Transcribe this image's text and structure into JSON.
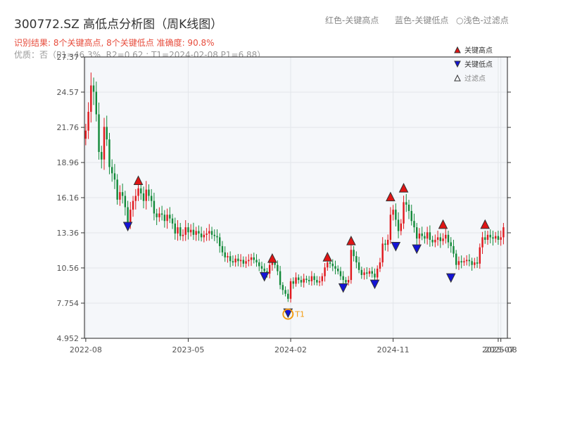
{
  "header": {
    "title": "300772.SZ 高低点分析图（周K线图）",
    "legend_top": [
      "红色-关键高点",
      "蓝色-关键低点",
      "○浅色-过滤点"
    ],
    "result_line": "识别结果: 8个关键高点, 8个关键低点   准确度: 90.8%",
    "quality_line": "优质：否（P1=46.3%, R2=0.62 ; T1=2024-02-08 P1=6.88）"
  },
  "colors": {
    "up": "#e0191e",
    "down": "#138a3a",
    "high_marker": "#e01414",
    "low_marker": "#1414d6",
    "t1": "#f39c12",
    "plot_bg": "#f5f7fa",
    "grid": "#e3e6ea"
  },
  "chart_data": {
    "type": "candlestick",
    "y_ticks": [
      "27.37",
      "24.57",
      "21.76",
      "18.96",
      "16.16",
      "13.36",
      "10.56",
      "7.754",
      "4.952"
    ],
    "ylim": [
      4.952,
      27.37
    ],
    "x_ticks": [
      "2022-08",
      "2023-05",
      "2024-02",
      "2024-11",
      "2025-07",
      "2025-08"
    ],
    "x_tick_index": [
      0,
      39,
      78,
      117,
      157,
      158
    ],
    "legend": [
      "关键高点",
      "关键低点",
      "过滤点"
    ],
    "t1_label": "T1",
    "t1": {
      "index": 77,
      "value": 6.88
    },
    "closes": [
      21.5,
      23.0,
      25.1,
      24.6,
      22.8,
      19.8,
      19.2,
      21.8,
      20.8,
      18.6,
      18.1,
      17.6,
      16.0,
      16.6,
      16.3,
      15.4,
      14.1,
      15.2,
      15.9,
      16.3,
      16.9,
      16.5,
      15.9,
      16.8,
      16.3,
      15.9,
      14.9,
      14.6,
      14.9,
      14.8,
      14.3,
      14.8,
      14.5,
      14.1,
      13.3,
      13.8,
      13.1,
      13.2,
      13.8,
      13.4,
      13.6,
      13.2,
      13.5,
      13.3,
      13.0,
      13.2,
      13.3,
      13.5,
      13.2,
      13.1,
      13.0,
      12.3,
      11.8,
      11.4,
      11.5,
      11.1,
      11.0,
      11.3,
      11.1,
      11.2,
      10.9,
      11.1,
      11.2,
      11.4,
      11.2,
      11.0,
      10.7,
      10.5,
      10.3,
      10.1,
      10.8,
      11.0,
      10.8,
      10.3,
      9.2,
      8.8,
      8.5,
      8.1,
      9.5,
      9.3,
      9.8,
      9.6,
      9.4,
      9.7,
      9.6,
      9.5,
      9.9,
      9.6,
      9.4,
      9.5,
      9.9,
      10.6,
      11.0,
      10.9,
      10.7,
      10.5,
      10.3,
      9.9,
      9.6,
      9.4,
      9.6,
      12.0,
      11.5,
      11.0,
      10.4,
      10.0,
      10.2,
      10.1,
      10.3,
      10.1,
      9.8,
      10.5,
      11.0,
      12.5,
      12.4,
      12.8,
      14.8,
      15.2,
      14.4,
      13.5,
      14.1,
      15.8,
      15.6,
      15.1,
      14.3,
      13.8,
      12.9,
      13.3,
      13.1,
      12.9,
      13.4,
      12.8,
      12.6,
      12.8,
      13.0,
      12.7,
      12.9,
      13.2,
      12.6,
      12.3,
      11.7,
      10.8,
      11.1,
      11.0,
      11.1,
      11.2,
      11.1,
      10.8,
      11.0,
      10.9,
      12.2,
      13.0,
      12.8,
      13.2,
      13.0,
      12.9,
      13.1,
      12.8,
      13.0,
      13.8
    ],
    "key_highs": [
      {
        "index": 20,
        "value": 17.2
      },
      {
        "index": 71,
        "value": 11.0
      },
      {
        "index": 92,
        "value": 11.1
      },
      {
        "index": 101,
        "value": 12.4
      },
      {
        "index": 116,
        "value": 15.9
      },
      {
        "index": 121,
        "value": 16.6
      },
      {
        "index": 136,
        "value": 13.7
      },
      {
        "index": 152,
        "value": 13.7
      }
    ],
    "key_lows": [
      {
        "index": 16,
        "value": 14.2
      },
      {
        "index": 68,
        "value": 10.2
      },
      {
        "index": 77,
        "value": 7.3
      },
      {
        "index": 98,
        "value": 9.3
      },
      {
        "index": 110,
        "value": 9.6
      },
      {
        "index": 118,
        "value": 12.6
      },
      {
        "index": 126,
        "value": 12.4
      },
      {
        "index": 139,
        "value": 10.1
      }
    ]
  }
}
